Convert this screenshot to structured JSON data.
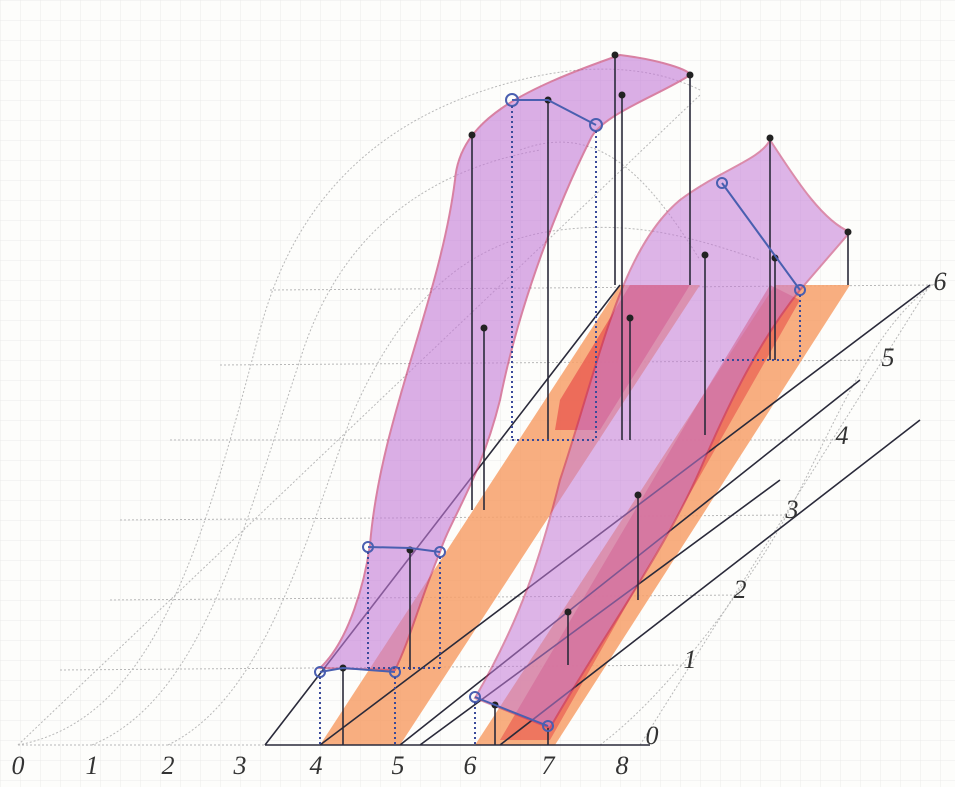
{
  "x_axis_labels": [
    0,
    1,
    2,
    3,
    4,
    5,
    6,
    7,
    8
  ],
  "depth_axis_labels": [
    0,
    1,
    2,
    3,
    4,
    5,
    6
  ]
}
